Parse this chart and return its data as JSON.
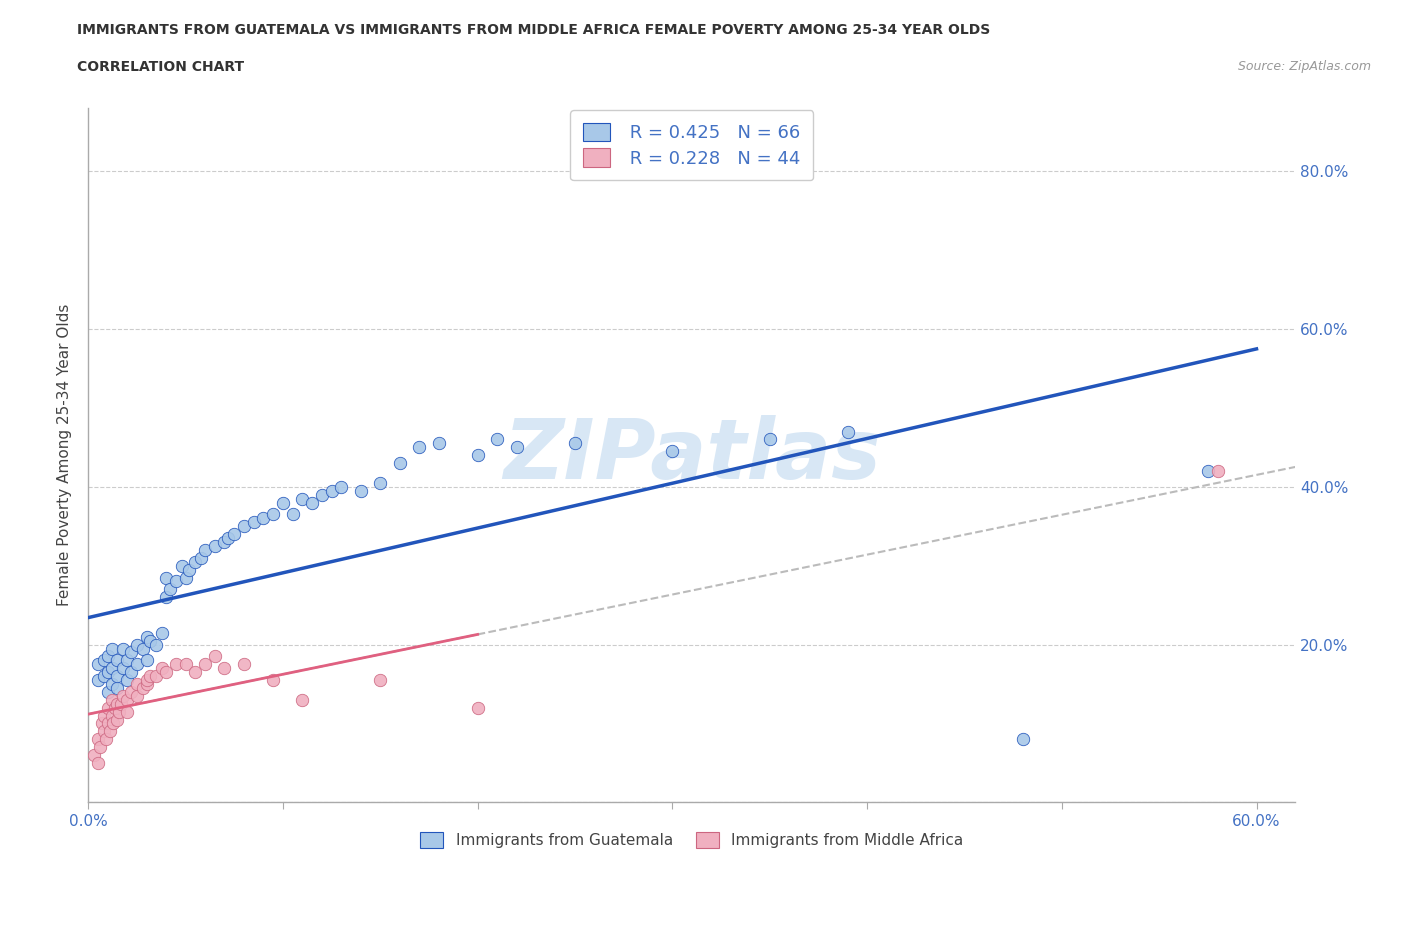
{
  "title_line1": "IMMIGRANTS FROM GUATEMALA VS IMMIGRANTS FROM MIDDLE AFRICA FEMALE POVERTY AMONG 25-34 YEAR OLDS",
  "title_line2": "CORRELATION CHART",
  "source_text": "Source: ZipAtlas.com",
  "ylabel": "Female Poverty Among 25-34 Year Olds",
  "xlim": [
    0.0,
    0.62
  ],
  "ylim": [
    0.0,
    0.88
  ],
  "xticks": [
    0.0,
    0.1,
    0.2,
    0.3,
    0.4,
    0.5,
    0.6
  ],
  "xticklabels": [
    "0.0%",
    "",
    "",
    "",
    "",
    "",
    "60.0%"
  ],
  "yticks": [
    0.0,
    0.2,
    0.4,
    0.6,
    0.8
  ],
  "yticklabels": [
    "",
    "20.0%",
    "40.0%",
    "60.0%",
    "80.0%"
  ],
  "R_guatemala": 0.425,
  "N_guatemala": 66,
  "R_middle_africa": 0.228,
  "N_middle_africa": 44,
  "color_guatemala": "#a8c8e8",
  "color_middle_africa": "#f0b0c0",
  "color_trendline_guatemala": "#2255bb",
  "color_trendline_middle_africa": "#e06080",
  "watermark": "ZIPatlas",
  "guatemala_x": [
    0.005,
    0.005,
    0.008,
    0.008,
    0.01,
    0.01,
    0.01,
    0.012,
    0.012,
    0.012,
    0.015,
    0.015,
    0.015,
    0.018,
    0.018,
    0.02,
    0.02,
    0.022,
    0.022,
    0.025,
    0.025,
    0.028,
    0.03,
    0.03,
    0.032,
    0.035,
    0.038,
    0.04,
    0.04,
    0.042,
    0.045,
    0.048,
    0.05,
    0.052,
    0.055,
    0.058,
    0.06,
    0.065,
    0.07,
    0.072,
    0.075,
    0.08,
    0.085,
    0.09,
    0.095,
    0.1,
    0.105,
    0.11,
    0.115,
    0.12,
    0.125,
    0.13,
    0.14,
    0.15,
    0.16,
    0.17,
    0.18,
    0.2,
    0.21,
    0.22,
    0.25,
    0.3,
    0.35,
    0.39,
    0.48,
    0.575
  ],
  "guatemala_y": [
    0.155,
    0.175,
    0.16,
    0.18,
    0.14,
    0.165,
    0.185,
    0.15,
    0.17,
    0.195,
    0.145,
    0.16,
    0.18,
    0.17,
    0.195,
    0.155,
    0.18,
    0.165,
    0.19,
    0.175,
    0.2,
    0.195,
    0.18,
    0.21,
    0.205,
    0.2,
    0.215,
    0.26,
    0.285,
    0.27,
    0.28,
    0.3,
    0.285,
    0.295,
    0.305,
    0.31,
    0.32,
    0.325,
    0.33,
    0.335,
    0.34,
    0.35,
    0.355,
    0.36,
    0.365,
    0.38,
    0.365,
    0.385,
    0.38,
    0.39,
    0.395,
    0.4,
    0.395,
    0.405,
    0.43,
    0.45,
    0.455,
    0.44,
    0.46,
    0.45,
    0.455,
    0.445,
    0.46,
    0.47,
    0.08,
    0.42
  ],
  "middle_africa_x": [
    0.003,
    0.005,
    0.005,
    0.006,
    0.007,
    0.008,
    0.008,
    0.009,
    0.01,
    0.01,
    0.011,
    0.012,
    0.012,
    0.013,
    0.014,
    0.015,
    0.015,
    0.016,
    0.017,
    0.018,
    0.02,
    0.02,
    0.022,
    0.025,
    0.025,
    0.028,
    0.03,
    0.03,
    0.032,
    0.035,
    0.038,
    0.04,
    0.045,
    0.05,
    0.055,
    0.06,
    0.065,
    0.07,
    0.08,
    0.095,
    0.11,
    0.15,
    0.2,
    0.58
  ],
  "middle_africa_y": [
    0.06,
    0.05,
    0.08,
    0.07,
    0.1,
    0.09,
    0.11,
    0.08,
    0.1,
    0.12,
    0.09,
    0.11,
    0.13,
    0.1,
    0.12,
    0.105,
    0.125,
    0.115,
    0.125,
    0.135,
    0.115,
    0.13,
    0.14,
    0.135,
    0.15,
    0.145,
    0.15,
    0.155,
    0.16,
    0.16,
    0.17,
    0.165,
    0.175,
    0.175,
    0.165,
    0.175,
    0.185,
    0.17,
    0.175,
    0.155,
    0.13,
    0.155,
    0.12,
    0.42
  ]
}
